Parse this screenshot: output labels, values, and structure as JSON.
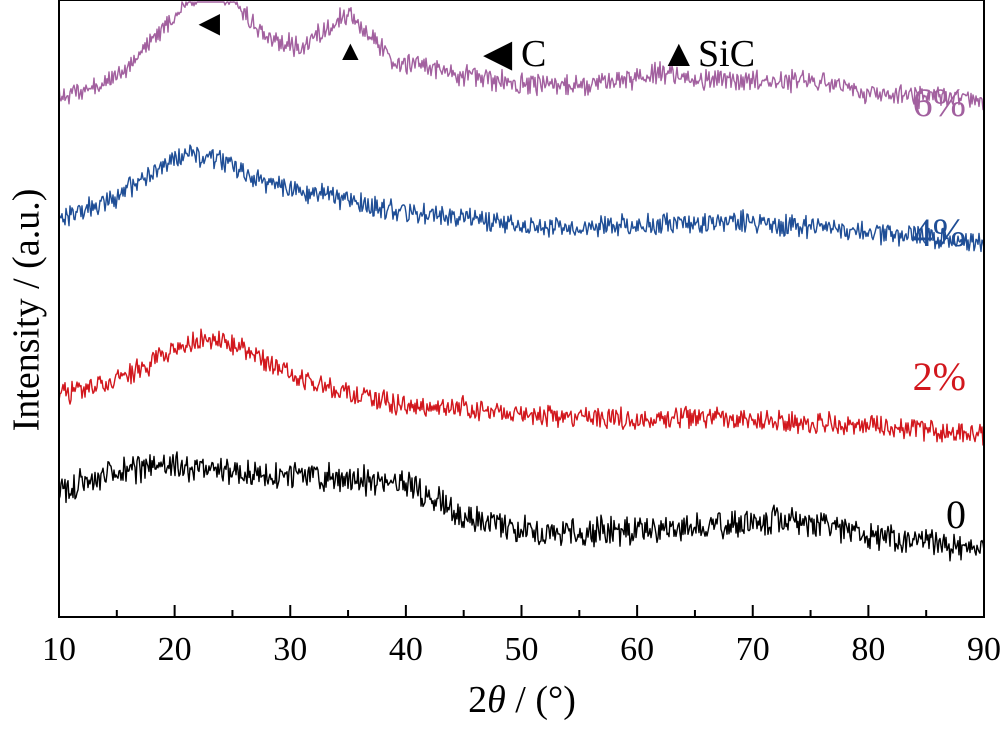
{
  "chart_data": {
    "type": "line",
    "xlabel_prefix": "2",
    "xlabel_theta": "θ",
    "xlabel_suffix": " / (°)",
    "ylabel": "Intensity / (a.u.)",
    "xlim": [
      10,
      90
    ],
    "x_ticks": [
      10,
      20,
      30,
      40,
      50,
      60,
      70,
      80,
      90
    ],
    "x_tick_labels": [
      "10",
      "20",
      "30",
      "40",
      "50",
      "60",
      "70",
      "80",
      "90"
    ],
    "y_ticks_shown": false,
    "grid": false,
    "legend": {
      "position": "top-right",
      "items": [
        {
          "symbol": "◀",
          "text": "C"
        },
        {
          "symbol": "▲",
          "text": "SiC"
        }
      ]
    },
    "peak_markers": [
      {
        "symbol": "◀",
        "x": 23.0,
        "series": "6%"
      },
      {
        "symbol": "▲",
        "x": 35.2,
        "series": "6%"
      }
    ],
    "series": [
      {
        "name": "6%",
        "color": "#a2609f",
        "noise": 9,
        "x": [
          10,
          14,
          17,
          19,
          21,
          23,
          25,
          27,
          29,
          31,
          33,
          35,
          37,
          39,
          42,
          45,
          50,
          55,
          60,
          62,
          65,
          70,
          75,
          80,
          85,
          90
        ],
        "y_rel": [
          0.7,
          0.76,
          0.86,
          0.98,
          1.08,
          1.13,
          1.1,
          0.98,
          0.92,
          0.9,
          0.97,
          1.04,
          0.94,
          0.84,
          0.82,
          0.79,
          0.75,
          0.74,
          0.78,
          0.8,
          0.77,
          0.76,
          0.77,
          0.72,
          0.7,
          0.68
        ]
      },
      {
        "name": "4%",
        "color": "#1f4e96",
        "noise": 9,
        "x": [
          10,
          14,
          17,
          19,
          21,
          23,
          25,
          27,
          30,
          33,
          36,
          40,
          45,
          50,
          55,
          60,
          65,
          70,
          75,
          80,
          85,
          90
        ],
        "y_rel": [
          0.5,
          0.56,
          0.64,
          0.71,
          0.75,
          0.74,
          0.7,
          0.65,
          0.61,
          0.59,
          0.55,
          0.52,
          0.5,
          0.46,
          0.46,
          0.47,
          0.48,
          0.48,
          0.46,
          0.44,
          0.42,
          0.4
        ]
      },
      {
        "name": "2%",
        "color": "#d2171d",
        "noise": 9,
        "x": [
          10,
          14,
          17,
          19,
          21,
          23,
          25,
          27,
          29,
          31,
          33,
          35,
          37,
          40,
          45,
          50,
          55,
          60,
          65,
          70,
          75,
          80,
          85,
          90
        ],
        "y_rel": [
          0.3,
          0.34,
          0.4,
          0.46,
          0.51,
          0.52,
          0.5,
          0.46,
          0.41,
          0.36,
          0.33,
          0.31,
          0.29,
          0.26,
          0.25,
          0.22,
          0.21,
          0.2,
          0.21,
          0.2,
          0.19,
          0.18,
          0.16,
          0.14
        ]
      },
      {
        "name": "0",
        "color": "#000000",
        "noise": 12,
        "x": [
          10,
          13,
          16,
          20,
          24,
          28,
          32,
          36,
          40,
          42,
          44,
          46,
          48,
          52,
          55,
          60,
          65,
          70,
          73,
          75,
          77,
          80,
          83,
          86,
          90
        ],
        "y_rel": [
          0.12,
          0.16,
          0.2,
          0.22,
          0.2,
          0.18,
          0.17,
          0.16,
          0.14,
          0.1,
          0.04,
          0.0,
          -0.02,
          -0.05,
          -0.05,
          -0.04,
          -0.03,
          -0.01,
          0.0,
          -0.01,
          -0.03,
          -0.06,
          -0.08,
          -0.1,
          -0.12
        ]
      }
    ]
  }
}
